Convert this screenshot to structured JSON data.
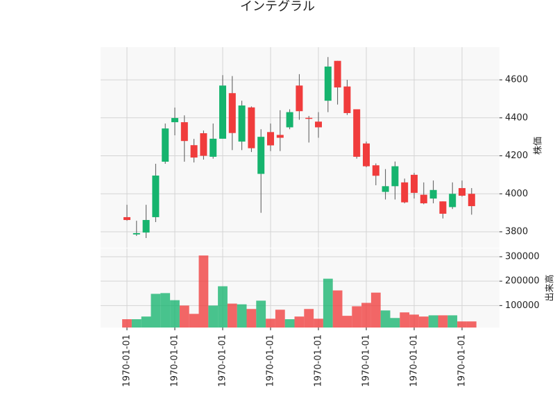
{
  "chart_data": {
    "type": "candlestick",
    "title": "インテグラル",
    "categories": [
      "1970-01-01",
      null,
      null,
      null,
      null,
      "1970-01-01",
      null,
      null,
      null,
      null,
      "1970-01-01",
      null,
      null,
      null,
      null,
      "1970-01-01",
      null,
      null,
      null,
      null,
      "1970-01-01",
      null,
      null,
      null,
      null,
      "1970-01-01",
      null,
      null,
      null,
      null,
      "1970-01-01",
      null,
      null,
      null,
      null,
      "1970-01-01",
      null
    ],
    "open": [
      3877,
      3786,
      3796,
      3877,
      4169,
      4377,
      4377,
      4256,
      4319,
      4195,
      4290,
      4530,
      4275,
      4455,
      4105,
      4325,
      4310,
      4350,
      4570,
      4400,
      4380,
      4490,
      4700,
      4565,
      4445,
      4265,
      4150,
      4010,
      4040,
      4060,
      4100,
      3995,
      3975,
      3960,
      3930,
      4030,
      4000
    ],
    "high": [
      3942,
      3858,
      3942,
      4158,
      4370,
      4454,
      4413,
      4289,
      4333,
      4370,
      4625,
      4620,
      4490,
      4460,
      4340,
      4370,
      4440,
      4445,
      4630,
      4410,
      4430,
      4720,
      4700,
      4600,
      4445,
      4275,
      4160,
      4130,
      4170,
      4080,
      4110,
      4060,
      4070,
      3960,
      4060,
      4070,
      4030
    ],
    "low": [
      3858,
      3778,
      3767,
      3851,
      4158,
      4308,
      4169,
      4165,
      4180,
      4185,
      4290,
      4230,
      4230,
      4220,
      3900,
      4225,
      4225,
      4340,
      4390,
      4270,
      4295,
      4430,
      4470,
      4415,
      4185,
      4140,
      4045,
      3970,
      3970,
      3950,
      3975,
      3945,
      3950,
      3870,
      3920,
      3985,
      3890
    ],
    "close": [
      3862,
      3793,
      3862,
      4096,
      4344,
      4399,
      4278,
      4191,
      4200,
      4290,
      4570,
      4320,
      4465,
      4240,
      4300,
      4255,
      4295,
      4430,
      4435,
      4395,
      4350,
      4670,
      4560,
      4425,
      4195,
      4145,
      4095,
      4040,
      4145,
      3955,
      4005,
      3950,
      4020,
      3895,
      4000,
      3990,
      3935
    ],
    "volume": [
      44000,
      44000,
      55000,
      148000,
      151000,
      122000,
      100000,
      66000,
      305000,
      100000,
      179000,
      108000,
      105000,
      86000,
      120000,
      46000,
      83000,
      44000,
      55000,
      86000,
      46000,
      210000,
      162000,
      58000,
      97000,
      111000,
      153000,
      80000,
      49000,
      72000,
      63000,
      55000,
      60000,
      60000,
      60000,
      35000,
      35000
    ],
    "ylabel": "株価",
    "volume_label": "出来高",
    "ylim": [
      3716,
      4772
    ],
    "yticks": [
      3800,
      4000,
      4200,
      4400,
      4600
    ],
    "volume_ylim": [
      10000,
      334000
    ],
    "volume_yticks": [
      100000,
      200000,
      300000
    ],
    "up_color": "#16b46e",
    "down_color": "#f03c3c",
    "grid": true
  }
}
